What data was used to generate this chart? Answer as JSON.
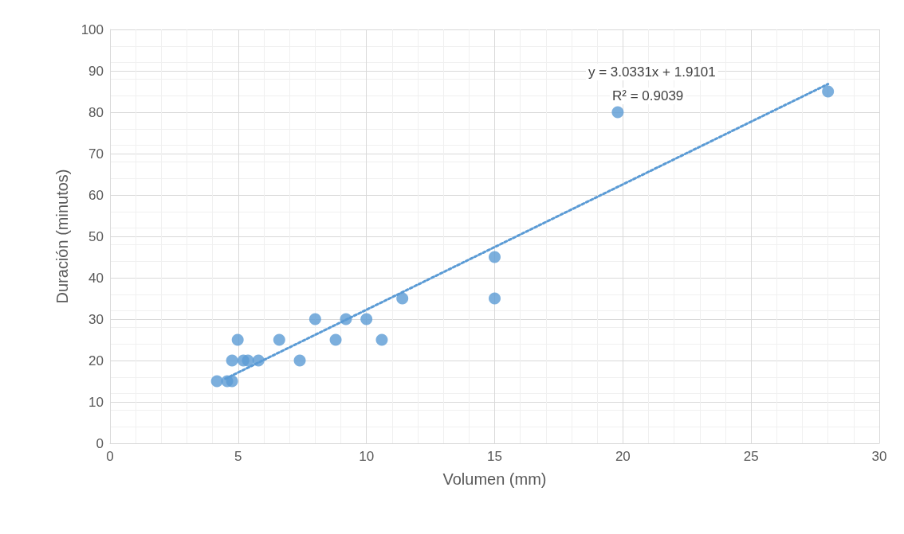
{
  "chart_data": {
    "type": "scatter",
    "xlabel": "Volumen (mm)",
    "ylabel": "Duración (minutos)",
    "annotations": [
      "y = 3.0331x + 1.9101",
      "R² = 0.9039"
    ],
    "xlim": [
      0,
      30
    ],
    "xticks": [
      0,
      5,
      10,
      15,
      20,
      25,
      30
    ],
    "ylim": [
      0,
      100
    ],
    "yticks": [
      0,
      10,
      20,
      30,
      40,
      50,
      60,
      70,
      80,
      90,
      100
    ],
    "grid": true,
    "marker": "circle",
    "series": [
      {
        "color": "#5b9bd5",
        "x": [
          4.17,
          4.57,
          4.76,
          4.76,
          4.98,
          5.2,
          5.38,
          5.79,
          6.6,
          7.4,
          8.0,
          8.8,
          9.2,
          10.0,
          10.6,
          11.4,
          15.0,
          15.0,
          19.8,
          28.0
        ],
        "values": [
          15,
          15,
          15,
          20,
          25,
          20,
          20,
          20,
          25,
          20,
          30,
          25,
          30,
          30,
          25,
          35,
          45,
          35,
          80,
          85
        ]
      },
      {
        "type": "line",
        "color": "#5b9bd5",
        "line_style": "dotted",
        "marker": "none",
        "x": [
          4.5,
          28.0
        ],
        "values": [
          15.6,
          86.8
        ]
      }
    ]
  }
}
